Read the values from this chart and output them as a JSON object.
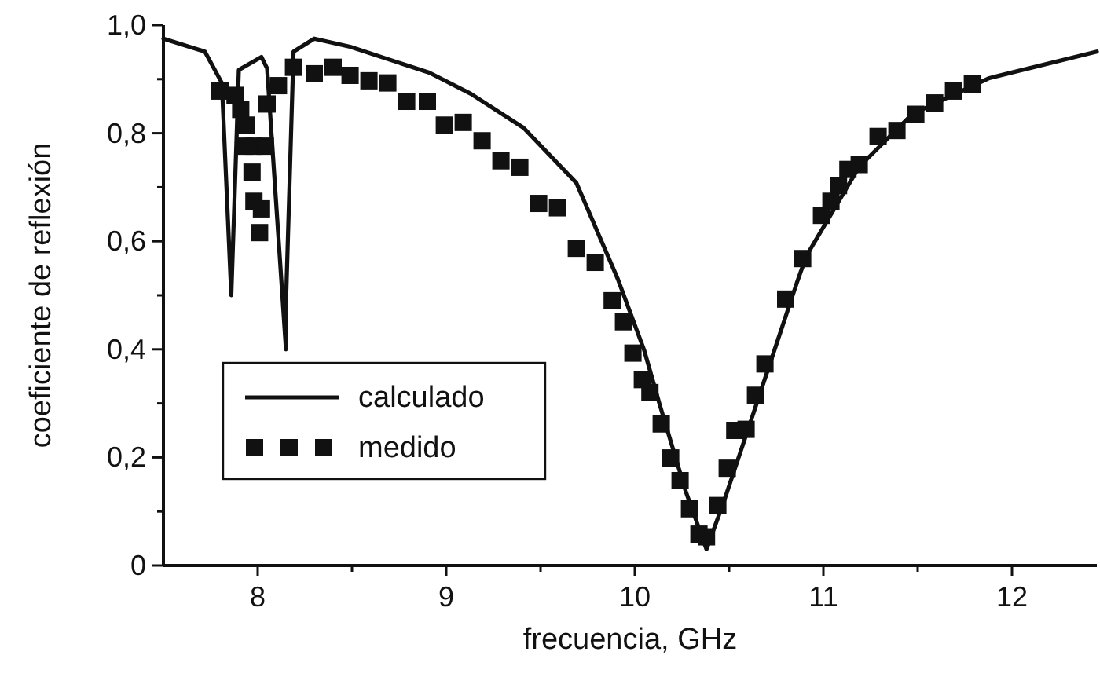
{
  "chart_data": {
    "type": "line",
    "xlabel": "frecuencia, GHz",
    "ylabel": "coeficiente de reflexión",
    "xlim": [
      7.5,
      12.45
    ],
    "ylim": [
      0,
      1.0
    ],
    "xticks": [
      8,
      {
        "value": 8.5,
        "label": null
      },
      9,
      {
        "value": 9.5,
        "label": null
      },
      10,
      {
        "value": 10.5,
        "label": null
      },
      11,
      {
        "value": 11.5,
        "label": null
      },
      12
    ],
    "yticks": [
      0,
      {
        "value": 0.1,
        "label": null
      },
      {
        "value": 0.2,
        "label": "0,2"
      },
      {
        "value": 0.3,
        "label": null
      },
      {
        "value": 0.4,
        "label": "0,4"
      },
      {
        "value": 0.5,
        "label": null
      },
      {
        "value": 0.6,
        "label": "0,6"
      },
      {
        "value": 0.7,
        "label": null
      },
      {
        "value": 0.8,
        "label": "0,8"
      },
      {
        "value": 0.9,
        "label": null
      },
      {
        "value": 1.0,
        "label": "1,0"
      }
    ],
    "grid": false,
    "legend": "bottom left",
    "series": [
      {
        "name": "calculado",
        "color": "#111111",
        "line_style": "solid",
        "marker": "none",
        "x": [
          7.5,
          7.72,
          7.81,
          7.86,
          7.9,
          8.02,
          8.05,
          8.15,
          8.15,
          8.19,
          8.3,
          8.49,
          8.91,
          9.13,
          9.41,
          9.69,
          9.91,
          10.05,
          10.13,
          10.27,
          10.38,
          10.47,
          10.61,
          10.74,
          10.86,
          10.91,
          11.19,
          11.47,
          11.88,
          12.45
        ],
        "values": [
          0.975,
          0.951,
          0.893,
          0.5,
          0.917,
          0.941,
          0.92,
          0.4,
          0.486,
          0.951,
          0.975,
          0.96,
          0.912,
          0.873,
          0.81,
          0.708,
          0.53,
          0.398,
          0.3,
          0.137,
          0.03,
          0.116,
          0.262,
          0.398,
          0.524,
          0.573,
          0.738,
          0.835,
          0.902,
          0.951
        ]
      },
      {
        "name": "medido",
        "type": "scatter",
        "color": "#111111",
        "marker": "square",
        "x": [
          7.8,
          7.88,
          7.91,
          7.94,
          7.93,
          7.98,
          8.04,
          7.97,
          7.98,
          8.02,
          8.01,
          8.05,
          8.11,
          8.19,
          8.3,
          8.4,
          8.49,
          8.59,
          8.69,
          8.79,
          8.9,
          8.99,
          9.09,
          9.19,
          9.29,
          9.39,
          9.49,
          9.59,
          9.69,
          9.79,
          9.88,
          9.94,
          9.99,
          10.04,
          10.08,
          10.14,
          10.19,
          10.24,
          10.29,
          10.34,
          10.38,
          10.44,
          10.49,
          10.53,
          10.59,
          10.64,
          10.69,
          10.8,
          10.89,
          10.99,
          11.04,
          11.08,
          11.13,
          11.19,
          11.29,
          11.39,
          11.49,
          11.59,
          11.69,
          11.79
        ],
        "values": [
          0.878,
          0.87,
          0.844,
          0.815,
          0.776,
          0.776,
          0.776,
          0.728,
          0.674,
          0.66,
          0.616,
          0.854,
          0.888,
          0.922,
          0.91,
          0.922,
          0.907,
          0.897,
          0.893,
          0.859,
          0.859,
          0.815,
          0.82,
          0.786,
          0.749,
          0.737,
          0.67,
          0.662,
          0.587,
          0.561,
          0.49,
          0.451,
          0.393,
          0.344,
          0.32,
          0.262,
          0.199,
          0.157,
          0.105,
          0.058,
          0.053,
          0.111,
          0.18,
          0.25,
          0.252,
          0.315,
          0.373,
          0.493,
          0.568,
          0.648,
          0.674,
          0.703,
          0.733,
          0.742,
          0.794,
          0.805,
          0.835,
          0.856,
          0.878,
          0.891
        ]
      }
    ]
  }
}
